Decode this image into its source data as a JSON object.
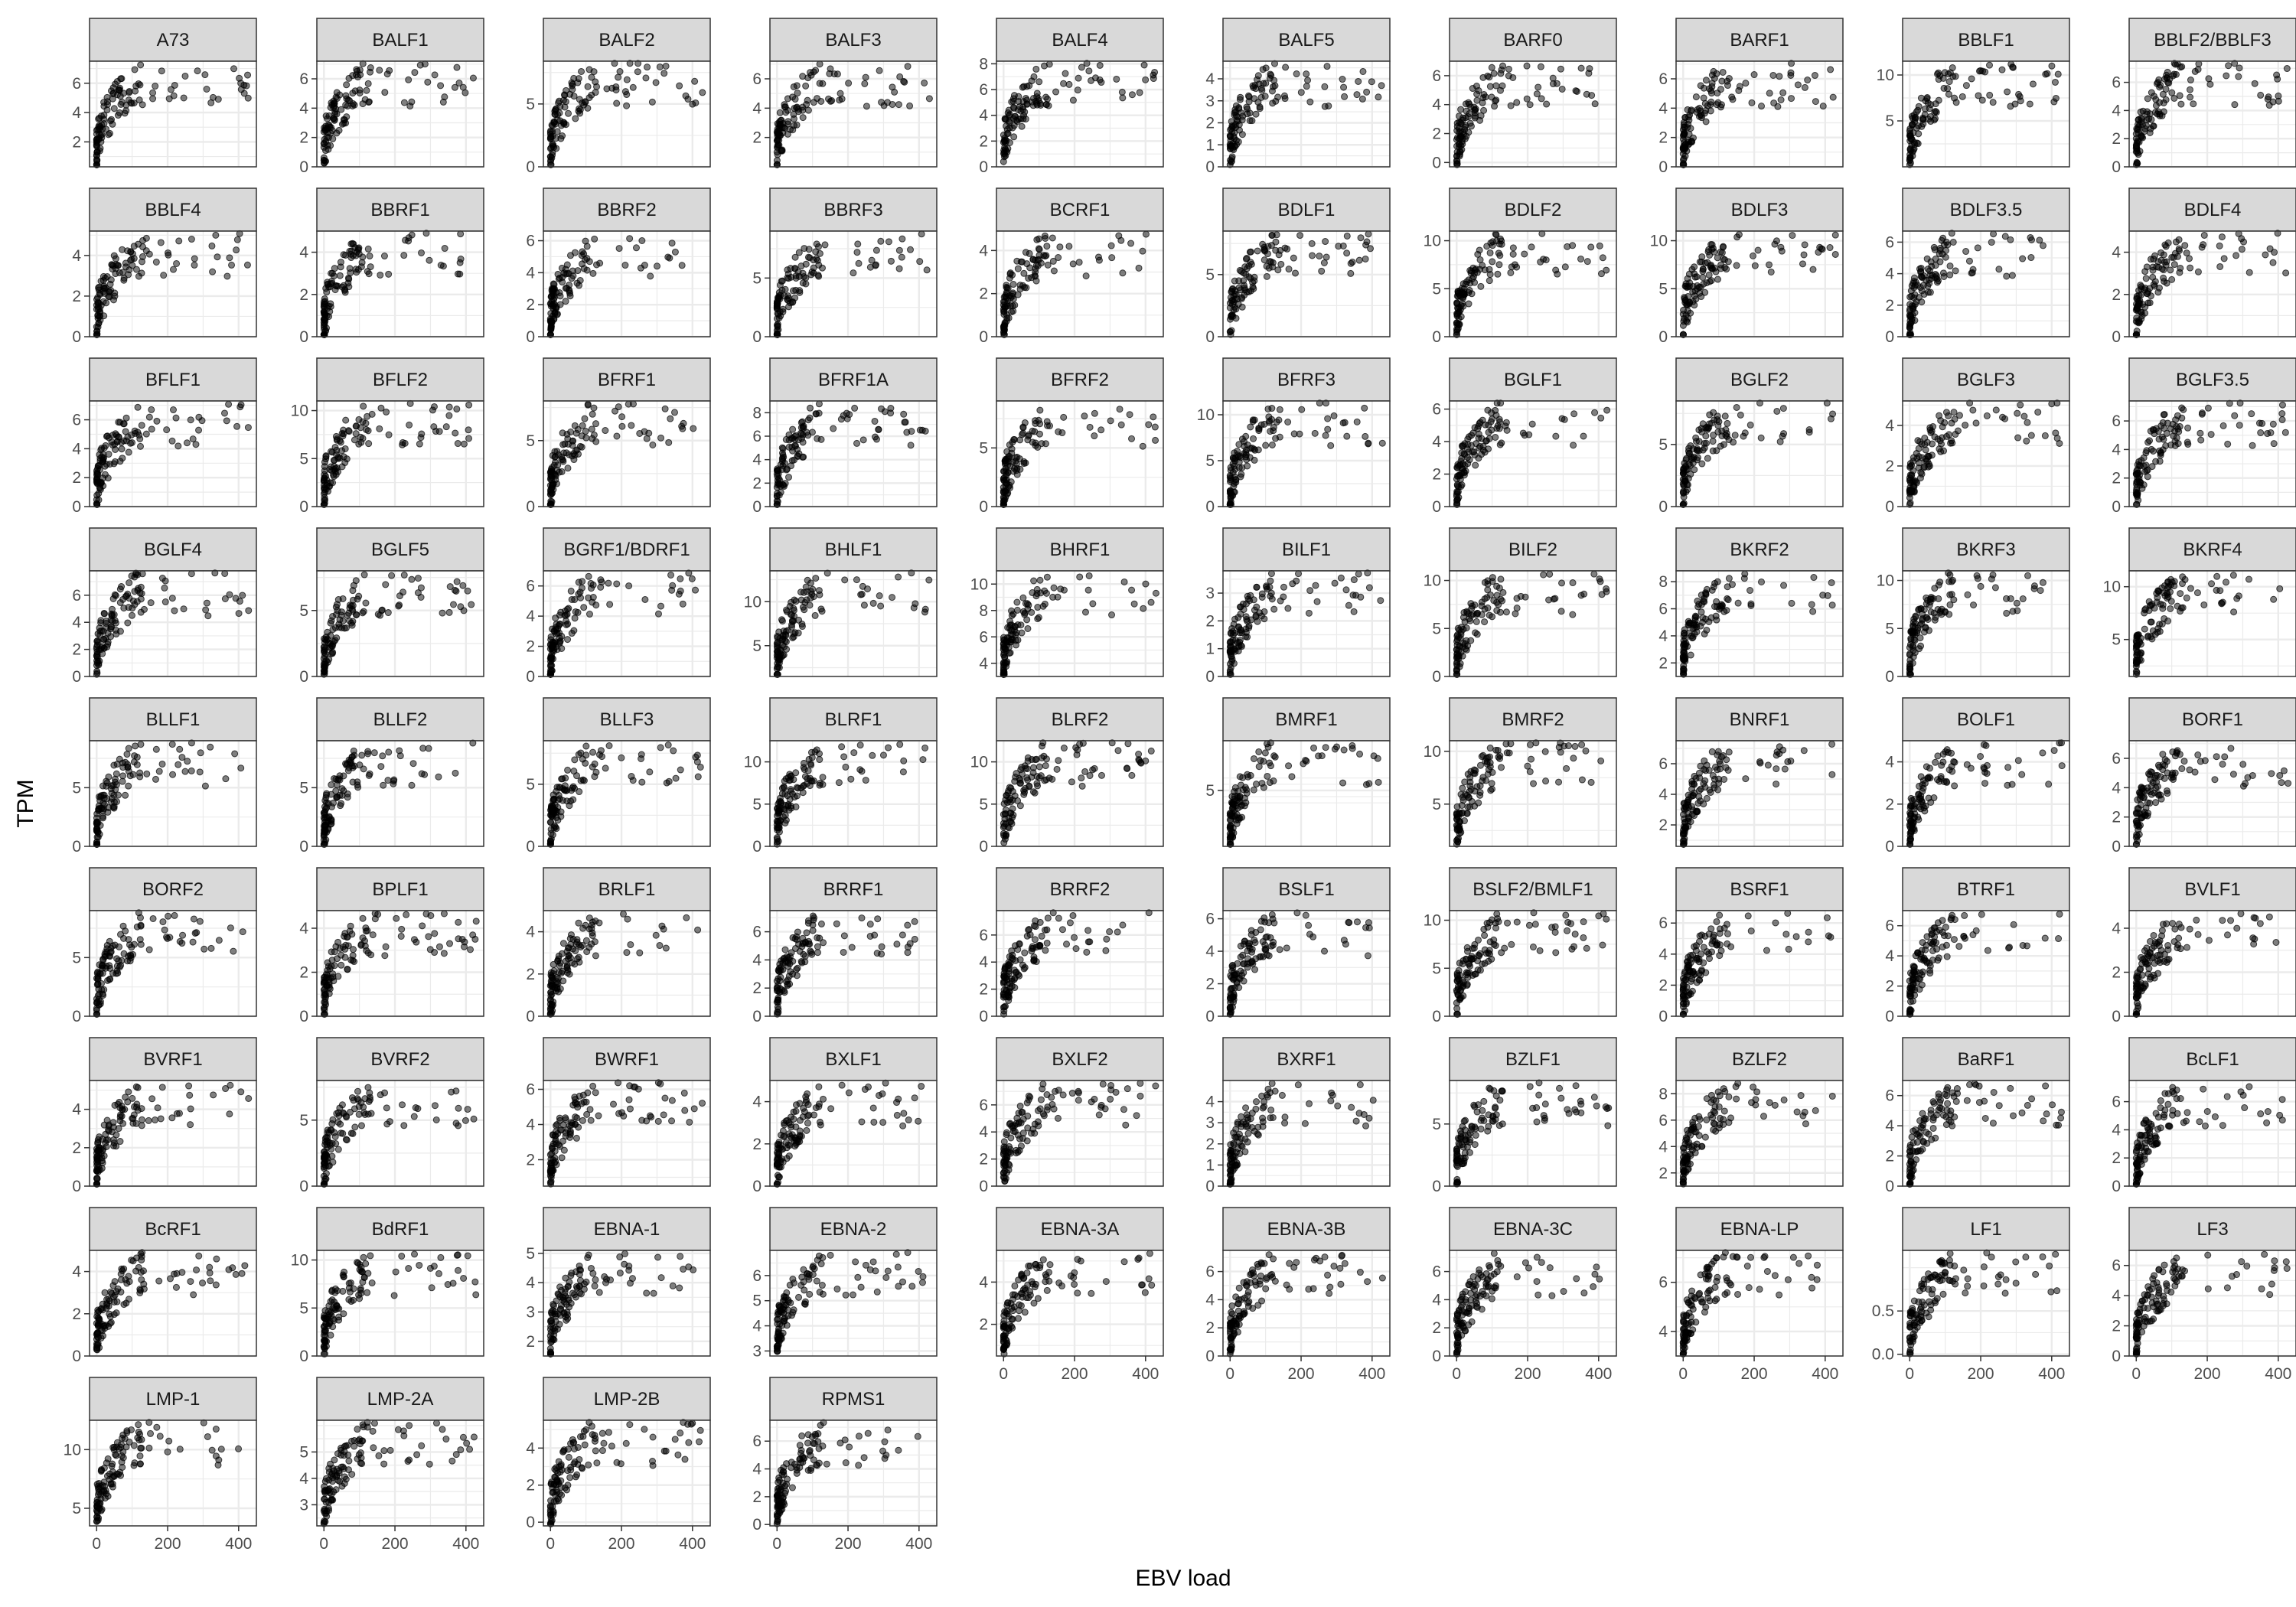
{
  "chart_data": {
    "type": "scatter",
    "title": "",
    "xlabel": "EBV load",
    "ylabel": "TPM",
    "grid": true,
    "legend": "none",
    "layout": {
      "rows": 9,
      "cols": 10,
      "facet_style": "ggplot2 facet_wrap, free y scales"
    },
    "x_ticks": [
      0,
      200,
      400
    ],
    "xlim": [
      -20,
      450
    ],
    "colors": {
      "point": "#000000",
      "strip_bg": "#d9d9d9",
      "strip_border": "#333333",
      "grid": "#ebebeb",
      "panel_border": "#333333"
    },
    "panels": [
      {
        "name": "A73",
        "ylim": [
          0.3,
          7.5
        ],
        "y_ticks": [
          2,
          4,
          6
        ]
      },
      {
        "name": "BALF1",
        "ylim": [
          0,
          7.2
        ],
        "y_ticks": [
          0,
          2,
          4,
          6
        ]
      },
      {
        "name": "BALF2",
        "ylim": [
          0,
          8.4
        ],
        "y_ticks": [
          0,
          5
        ]
      },
      {
        "name": "BALF3",
        "ylim": [
          0,
          7.2
        ],
        "y_ticks": [
          2,
          4,
          6
        ]
      },
      {
        "name": "BALF4",
        "ylim": [
          0,
          8.2
        ],
        "y_ticks": [
          0,
          2,
          4,
          6,
          8
        ]
      },
      {
        "name": "BALF5",
        "ylim": [
          0,
          4.8
        ],
        "y_ticks": [
          0,
          1,
          2,
          3,
          4
        ]
      },
      {
        "name": "BARF0",
        "ylim": [
          -0.3,
          7
        ],
        "y_ticks": [
          0,
          2,
          4,
          6
        ]
      },
      {
        "name": "BARF1",
        "ylim": [
          0,
          7.2
        ],
        "y_ticks": [
          0,
          2,
          4,
          6
        ]
      },
      {
        "name": "BBLF1",
        "ylim": [
          0,
          11.5
        ],
        "y_ticks": [
          5,
          10
        ]
      },
      {
        "name": "BBLF2/BBLF3",
        "ylim": [
          0,
          7.5
        ],
        "y_ticks": [
          0,
          2,
          4,
          6
        ]
      },
      {
        "name": "BBLF4",
        "ylim": [
          0,
          5.2
        ],
        "y_ticks": [
          0,
          2,
          4
        ]
      },
      {
        "name": "BBRF1",
        "ylim": [
          0,
          5
        ],
        "y_ticks": [
          0,
          2,
          4
        ]
      },
      {
        "name": "BBRF2",
        "ylim": [
          0,
          6.6
        ],
        "y_ticks": [
          0,
          2,
          4,
          6
        ]
      },
      {
        "name": "BBRF3",
        "ylim": [
          0,
          9
        ],
        "y_ticks": [
          0,
          5
        ]
      },
      {
        "name": "BCRF1",
        "ylim": [
          0,
          4.9
        ],
        "y_ticks": [
          0,
          2,
          4
        ]
      },
      {
        "name": "BDLF1",
        "ylim": [
          0,
          8.5
        ],
        "y_ticks": [
          0,
          5
        ]
      },
      {
        "name": "BDLF2",
        "ylim": [
          0,
          11
        ],
        "y_ticks": [
          0,
          5,
          10
        ]
      },
      {
        "name": "BDLF3",
        "ylim": [
          0,
          11
        ],
        "y_ticks": [
          0,
          5,
          10
        ]
      },
      {
        "name": "BDLF3.5",
        "ylim": [
          0,
          6.7
        ],
        "y_ticks": [
          0,
          2,
          4,
          6
        ]
      },
      {
        "name": "BDLF4",
        "ylim": [
          0,
          5
        ],
        "y_ticks": [
          0,
          2,
          4
        ]
      },
      {
        "name": "BFLF1",
        "ylim": [
          0,
          7.3
        ],
        "y_ticks": [
          0,
          2,
          4,
          6
        ]
      },
      {
        "name": "BFLF2",
        "ylim": [
          0,
          11
        ],
        "y_ticks": [
          0,
          5,
          10
        ]
      },
      {
        "name": "BFRF1",
        "ylim": [
          0,
          8
        ],
        "y_ticks": [
          0,
          5
        ]
      },
      {
        "name": "BFRF1A",
        "ylim": [
          0,
          9
        ],
        "y_ticks": [
          0,
          2,
          4,
          6,
          8
        ]
      },
      {
        "name": "BFRF2",
        "ylim": [
          0,
          9
        ],
        "y_ticks": [
          0,
          5
        ]
      },
      {
        "name": "BFRF3",
        "ylim": [
          0,
          11.5
        ],
        "y_ticks": [
          0,
          5,
          10
        ]
      },
      {
        "name": "BGLF1",
        "ylim": [
          0,
          6.5
        ],
        "y_ticks": [
          0,
          2,
          4,
          6
        ]
      },
      {
        "name": "BGLF2",
        "ylim": [
          0,
          8.5
        ],
        "y_ticks": [
          0,
          5
        ]
      },
      {
        "name": "BGLF3",
        "ylim": [
          0,
          5.2
        ],
        "y_ticks": [
          0,
          2,
          4
        ]
      },
      {
        "name": "BGLF3.5",
        "ylim": [
          0,
          7.4
        ],
        "y_ticks": [
          0,
          2,
          4,
          6
        ]
      },
      {
        "name": "BGLF4",
        "ylim": [
          0,
          7.8
        ],
        "y_ticks": [
          0,
          2,
          4,
          6
        ]
      },
      {
        "name": "BGLF5",
        "ylim": [
          0,
          8
        ],
        "y_ticks": [
          0,
          5
        ]
      },
      {
        "name": "BGRF1/BDRF1",
        "ylim": [
          0,
          7
        ],
        "y_ticks": [
          0,
          2,
          4,
          6
        ]
      },
      {
        "name": "BHLF1",
        "ylim": [
          1.5,
          13.5
        ],
        "y_ticks": [
          5,
          10
        ]
      },
      {
        "name": "BHRF1",
        "ylim": [
          3,
          11
        ],
        "y_ticks": [
          4,
          6,
          8,
          10
        ]
      },
      {
        "name": "BILF1",
        "ylim": [
          0,
          3.8
        ],
        "y_ticks": [
          0,
          1,
          2,
          3
        ]
      },
      {
        "name": "BILF2",
        "ylim": [
          0,
          11
        ],
        "y_ticks": [
          0,
          5,
          10
        ]
      },
      {
        "name": "BKRF2",
        "ylim": [
          1,
          8.8
        ],
        "y_ticks": [
          2,
          4,
          6,
          8
        ]
      },
      {
        "name": "BKRF3",
        "ylim": [
          0,
          11
        ],
        "y_ticks": [
          0,
          5,
          10
        ]
      },
      {
        "name": "BKRF4",
        "ylim": [
          1.5,
          11.5
        ],
        "y_ticks": [
          5,
          10
        ]
      },
      {
        "name": "BLLF1",
        "ylim": [
          0,
          9
        ],
        "y_ticks": [
          0,
          5
        ]
      },
      {
        "name": "BLLF2",
        "ylim": [
          0,
          9
        ],
        "y_ticks": [
          0,
          5
        ]
      },
      {
        "name": "BLLF3",
        "ylim": [
          0,
          8.5
        ],
        "y_ticks": [
          0,
          5
        ]
      },
      {
        "name": "BLRF1",
        "ylim": [
          0,
          12.5
        ],
        "y_ticks": [
          0,
          5,
          10
        ]
      },
      {
        "name": "BLRF2",
        "ylim": [
          0,
          12.5
        ],
        "y_ticks": [
          0,
          5,
          10
        ]
      },
      {
        "name": "BMRF1",
        "ylim": [
          0.5,
          9
        ],
        "y_ticks": [
          5
        ]
      },
      {
        "name": "BMRF2",
        "ylim": [
          1,
          11
        ],
        "y_ticks": [
          5,
          10
        ]
      },
      {
        "name": "BNRF1",
        "ylim": [
          0.6,
          7.5
        ],
        "y_ticks": [
          2,
          4,
          6
        ]
      },
      {
        "name": "BOLF1",
        "ylim": [
          0,
          5
        ],
        "y_ticks": [
          0,
          2,
          4
        ]
      },
      {
        "name": "BORF1",
        "ylim": [
          0,
          7.2
        ],
        "y_ticks": [
          0,
          2,
          4,
          6
        ]
      },
      {
        "name": "BORF2",
        "ylim": [
          0,
          9
        ],
        "y_ticks": [
          0,
          5
        ]
      },
      {
        "name": "BPLF1",
        "ylim": [
          0,
          4.8
        ],
        "y_ticks": [
          0,
          2,
          4
        ]
      },
      {
        "name": "BRLF1",
        "ylim": [
          0,
          5
        ],
        "y_ticks": [
          0,
          2,
          4
        ]
      },
      {
        "name": "BRRF1",
        "ylim": [
          0,
          7.5
        ],
        "y_ticks": [
          0,
          2,
          4,
          6
        ]
      },
      {
        "name": "BRRF2",
        "ylim": [
          0,
          7.8
        ],
        "y_ticks": [
          0,
          2,
          4,
          6
        ]
      },
      {
        "name": "BSLF1",
        "ylim": [
          0,
          6.5
        ],
        "y_ticks": [
          0,
          2,
          4,
          6
        ]
      },
      {
        "name": "BSLF2/BMLF1",
        "ylim": [
          0,
          11
        ],
        "y_ticks": [
          0,
          5,
          10
        ]
      },
      {
        "name": "BSRF1",
        "ylim": [
          0,
          6.8
        ],
        "y_ticks": [
          0,
          2,
          4,
          6
        ]
      },
      {
        "name": "BTRF1",
        "ylim": [
          0,
          7
        ],
        "y_ticks": [
          0,
          2,
          4,
          6
        ]
      },
      {
        "name": "BVLF1",
        "ylim": [
          0,
          4.8
        ],
        "y_ticks": [
          0,
          2,
          4
        ]
      },
      {
        "name": "BVRF1",
        "ylim": [
          0,
          5.5
        ],
        "y_ticks": [
          0,
          2,
          4
        ]
      },
      {
        "name": "BVRF2",
        "ylim": [
          0,
          8
        ],
        "y_ticks": [
          0,
          5
        ]
      },
      {
        "name": "BWRF1",
        "ylim": [
          0.5,
          6.5
        ],
        "y_ticks": [
          2,
          4,
          6
        ]
      },
      {
        "name": "BXLF1",
        "ylim": [
          0,
          5
        ],
        "y_ticks": [
          0,
          2,
          4
        ]
      },
      {
        "name": "BXLF2",
        "ylim": [
          0,
          7.8
        ],
        "y_ticks": [
          0,
          2,
          4,
          6
        ]
      },
      {
        "name": "BXRF1",
        "ylim": [
          0,
          5
        ],
        "y_ticks": [
          0,
          1,
          2,
          3,
          4
        ]
      },
      {
        "name": "BZLF1",
        "ylim": [
          0,
          8.5
        ],
        "y_ticks": [
          0,
          5
        ]
      },
      {
        "name": "BZLF2",
        "ylim": [
          1,
          9
        ],
        "y_ticks": [
          2,
          4,
          6,
          8
        ]
      },
      {
        "name": "BaRF1",
        "ylim": [
          0,
          7
        ],
        "y_ticks": [
          0,
          2,
          4,
          6
        ]
      },
      {
        "name": "BcLF1",
        "ylim": [
          0,
          7.5
        ],
        "y_ticks": [
          0,
          2,
          4,
          6
        ]
      },
      {
        "name": "BcRF1",
        "ylim": [
          0,
          5
        ],
        "y_ticks": [
          0,
          2,
          4
        ]
      },
      {
        "name": "BdRF1",
        "ylim": [
          0,
          11
        ],
        "y_ticks": [
          0,
          5,
          10
        ]
      },
      {
        "name": "EBNA-1",
        "ylim": [
          1.5,
          5.1
        ],
        "y_ticks": [
          2,
          3,
          4,
          5
        ]
      },
      {
        "name": "EBNA-2",
        "ylim": [
          2.8,
          7
        ],
        "y_ticks": [
          3,
          4,
          5,
          6
        ]
      },
      {
        "name": "EBNA-3A",
        "ylim": [
          0.5,
          5.5
        ],
        "y_ticks": [
          2,
          4
        ]
      },
      {
        "name": "EBNA-3B",
        "ylim": [
          0,
          7.5
        ],
        "y_ticks": [
          0,
          2,
          4,
          6
        ]
      },
      {
        "name": "EBNA-3C",
        "ylim": [
          0,
          7.5
        ],
        "y_ticks": [
          0,
          2,
          4,
          6
        ]
      },
      {
        "name": "EBNA-LP",
        "ylim": [
          3,
          7.3
        ],
        "y_ticks": [
          4,
          6
        ]
      },
      {
        "name": "LF1",
        "ylim": [
          -0.02,
          1.2
        ],
        "y_ticks": [
          0.0,
          0.5
        ]
      },
      {
        "name": "LF3",
        "ylim": [
          0,
          7
        ],
        "y_ticks": [
          0,
          2,
          4,
          6
        ]
      },
      {
        "name": "LMP-1",
        "ylim": [
          3.5,
          12.5
        ],
        "y_ticks": [
          5,
          10
        ]
      },
      {
        "name": "LMP-2A",
        "ylim": [
          2.2,
          6.2
        ],
        "y_ticks": [
          3,
          4,
          5
        ]
      },
      {
        "name": "LMP-2B",
        "ylim": [
          -0.2,
          5.5
        ],
        "y_ticks": [
          0,
          2,
          4
        ]
      },
      {
        "name": "RPMS1",
        "ylim": [
          -0.1,
          7.5
        ],
        "y_ticks": [
          0,
          2,
          4,
          6
        ]
      }
    ]
  }
}
